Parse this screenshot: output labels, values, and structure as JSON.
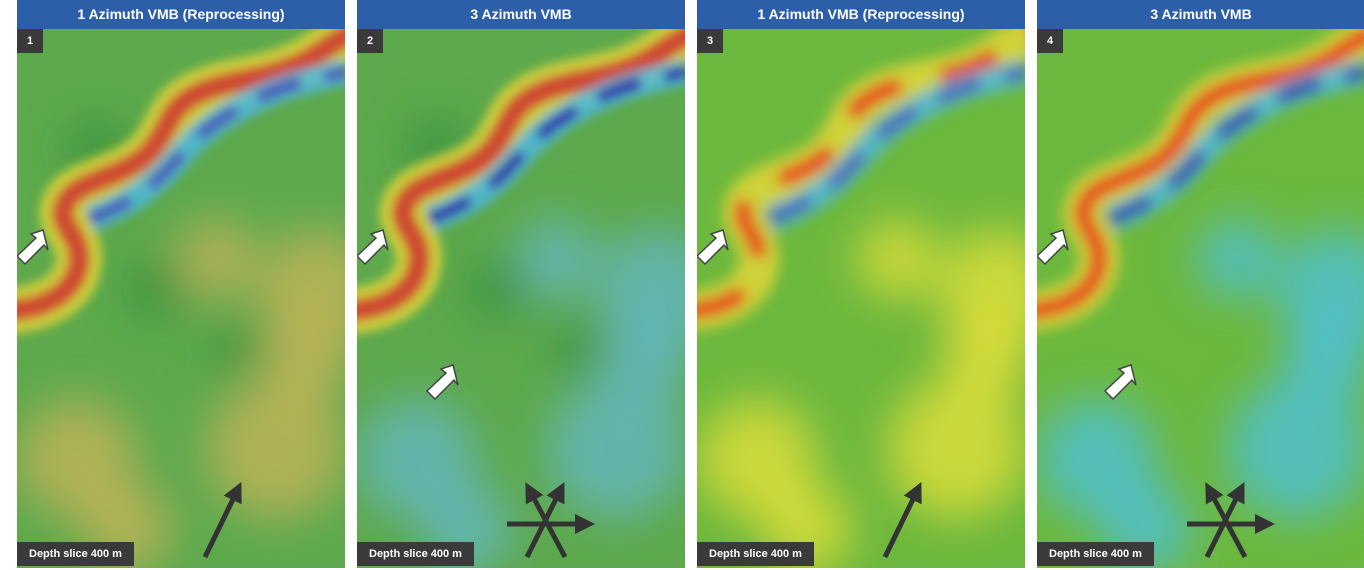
{
  "panels": [
    {
      "number": "1",
      "title": "1 Azimuth VMB (Reprocessing)",
      "caption": "Depth slice 400 m"
    },
    {
      "number": "2",
      "title": "3 Azimuth VMB",
      "caption": "Depth slice 400 m"
    },
    {
      "number": "3",
      "title": "1 Azimuth VMB (Reprocessing)",
      "caption": "Depth slice 400 m"
    },
    {
      "number": "4",
      "title": "3 Azimuth VMB",
      "caption": "Depth slice 400 m"
    }
  ]
}
